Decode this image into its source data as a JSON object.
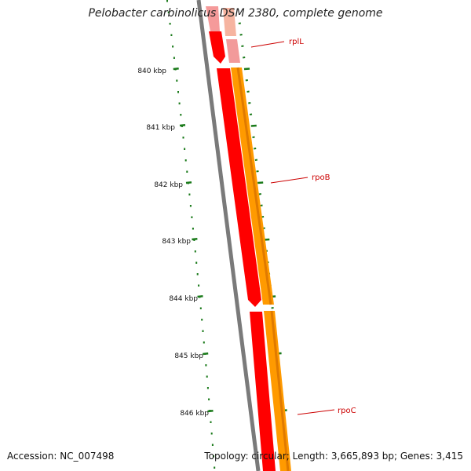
{
  "title": "Pelobacter carbinolicus DSM 2380, complete genome",
  "footer": {
    "accession": "Accession: NC_007498",
    "summary": "Topology: circular; Length: 3,665,893 bp; Genes: 3,415"
  },
  "ticks": [
    {
      "label": "840 kbp"
    },
    {
      "label": "841 kbp"
    },
    {
      "label": "842 kbp"
    },
    {
      "label": "843 kbp"
    },
    {
      "label": "844 kbp"
    },
    {
      "label": "845 kbp"
    },
    {
      "label": "846 kbp"
    }
  ],
  "genes": [
    {
      "name": "rplL"
    },
    {
      "name": "rpoB"
    },
    {
      "name": "rpoC"
    }
  ],
  "colors": {
    "backbone": "#7a7a7a",
    "cds": "#ff0000",
    "cds_light": "#f59a9a",
    "gene": "#ff9a00",
    "gene_light": "#f6b4a0",
    "tick": "#1a7a1a",
    "label_line": "#cc0000"
  }
}
